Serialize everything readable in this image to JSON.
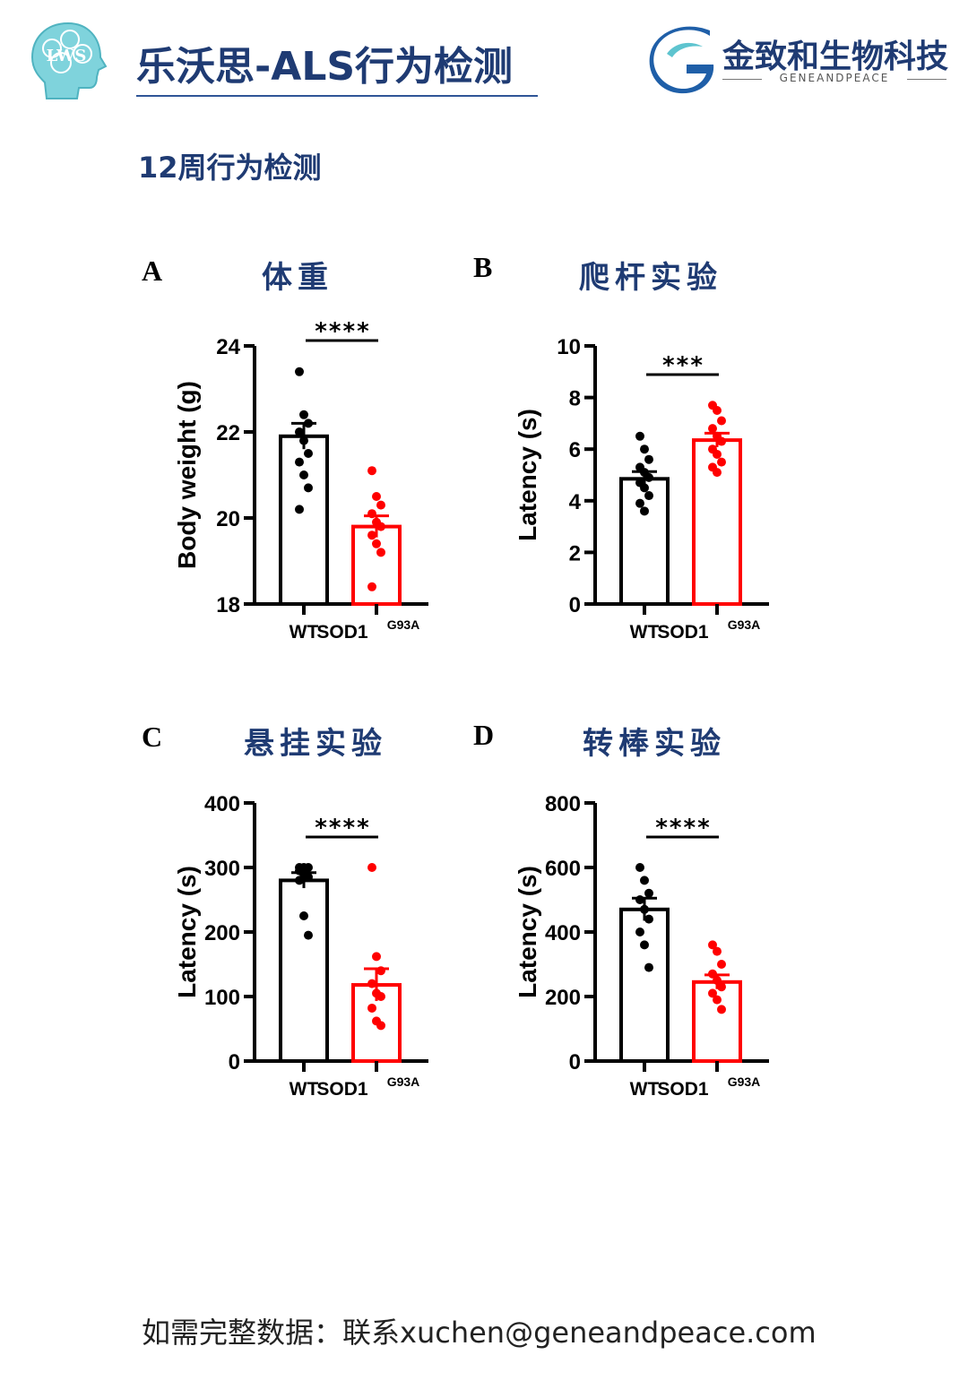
{
  "header": {
    "title": "乐沃思-ALS行为检测",
    "brand_name": "金致和生物科技",
    "brand_sub": "GENEANDPEACE",
    "logo_text": "LWS",
    "colors": {
      "title": "#1f3b73",
      "brand_blue": "#1f5fa8",
      "logo_teal": "#5ec4cf"
    }
  },
  "section_title": "12周行为检测",
  "panels": [
    {
      "letter": "A",
      "title": "体重"
    },
    {
      "letter": "B",
      "title": "爬杆实验"
    },
    {
      "letter": "C",
      "title": "悬挂实验"
    },
    {
      "letter": "D",
      "title": "转棒实验"
    }
  ],
  "chart_data": [
    {
      "type": "bar",
      "ylabel": "Body weight (g)",
      "ylim": [
        18,
        24
      ],
      "yticks": [
        "18",
        "20",
        "22",
        "24"
      ],
      "categories": [
        "WT",
        "SOD1"
      ],
      "category_superscripts": [
        "",
        "G93A"
      ],
      "significance": "****",
      "series": [
        {
          "color": "#000000",
          "mean": 21.9,
          "sem": 0.3,
          "points": [
            23.4,
            22.4,
            22.2,
            22.0,
            21.8,
            21.5,
            21.3,
            21.0,
            20.7,
            20.2
          ]
        },
        {
          "color": "#ff0000",
          "mean": 19.8,
          "sem": 0.25,
          "points": [
            21.1,
            20.5,
            20.3,
            20.1,
            19.9,
            19.8,
            19.6,
            19.4,
            19.2,
            18.4
          ]
        }
      ]
    },
    {
      "type": "bar",
      "ylabel": "Latency (s)",
      "ylim": [
        0,
        10
      ],
      "yticks": [
        "0",
        "2",
        "4",
        "6",
        "8",
        "10"
      ],
      "categories": [
        "WT",
        "SOD1"
      ],
      "category_superscripts": [
        "",
        "G93A"
      ],
      "significance": "***",
      "series": [
        {
          "color": "#000000",
          "mean": 4.85,
          "sem": 0.28,
          "points": [
            6.5,
            6.0,
            5.6,
            5.3,
            5.1,
            4.9,
            4.7,
            4.5,
            4.2,
            3.9,
            3.6
          ]
        },
        {
          "color": "#ff0000",
          "mean": 6.35,
          "sem": 0.27,
          "points": [
            7.7,
            7.5,
            7.1,
            6.8,
            6.5,
            6.3,
            6.0,
            5.8,
            5.5,
            5.3,
            5.1
          ]
        }
      ]
    },
    {
      "type": "bar",
      "ylabel": "Latency (s)",
      "ylim": [
        0,
        400
      ],
      "yticks": [
        "0",
        "100",
        "200",
        "300",
        "400"
      ],
      "categories": [
        "WT",
        "SOD1"
      ],
      "category_superscripts": [
        "",
        "G93A"
      ],
      "significance": "****",
      "series": [
        {
          "color": "#000000",
          "mean": 280,
          "sem": 12,
          "points": [
            300,
            300,
            300,
            295,
            290,
            285,
            280,
            225,
            195
          ]
        },
        {
          "color": "#ff0000",
          "mean": 118,
          "sem": 25,
          "points": [
            300,
            162,
            140,
            120,
            105,
            100,
            82,
            62,
            55
          ]
        }
      ]
    },
    {
      "type": "bar",
      "ylabel": "Latency (s)",
      "ylim": [
        0,
        800
      ],
      "yticks": [
        "0",
        "200",
        "400",
        "600",
        "800"
      ],
      "categories": [
        "WT",
        "SOD1"
      ],
      "category_superscripts": [
        "",
        "G93A"
      ],
      "significance": "****",
      "series": [
        {
          "color": "#000000",
          "mean": 470,
          "sem": 35,
          "points": [
            600,
            560,
            520,
            500,
            470,
            440,
            400,
            360,
            290
          ]
        },
        {
          "color": "#ff0000",
          "mean": 245,
          "sem": 22,
          "points": [
            360,
            340,
            300,
            270,
            250,
            230,
            210,
            190,
            160
          ]
        }
      ]
    }
  ],
  "footer": {
    "text": "如需完整数据：联系xuchen@geneandpeace.com"
  }
}
